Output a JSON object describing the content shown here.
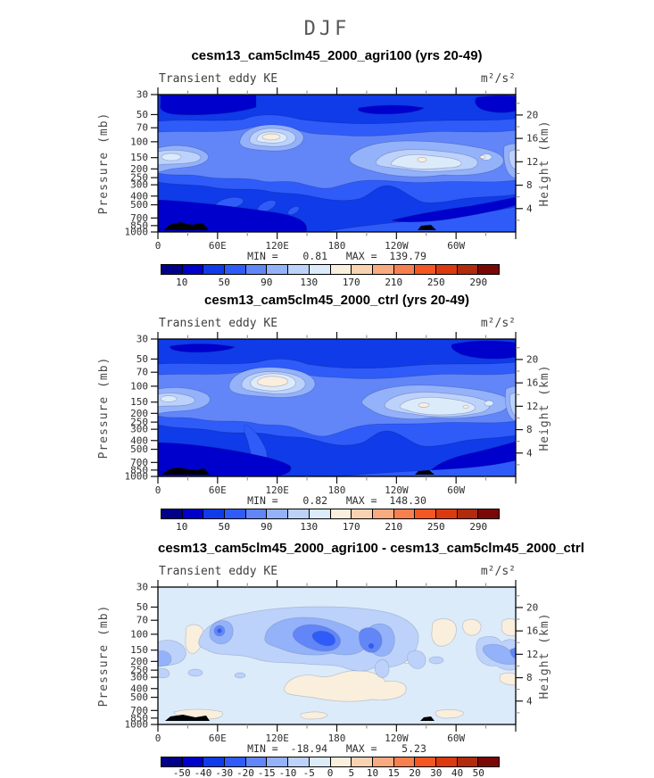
{
  "figure": {
    "title": "DJF"
  },
  "colorbar": {
    "colors": [
      "#000089",
      "#0000cd",
      "#0f3be8",
      "#2f5cf8",
      "#6286f8",
      "#94b2fa",
      "#bdd2fa",
      "#dcebfa",
      "#faeedc",
      "#f9d2b2",
      "#f8aa80",
      "#f8804e",
      "#f45722",
      "#dc3a0e",
      "#b02c0c",
      "#7a0806"
    ],
    "panel12": {
      "labels": [
        "10",
        "50",
        "90",
        "130",
        "170",
        "210",
        "250",
        "290"
      ],
      "boundaries": [
        1,
        3,
        5,
        7,
        9,
        11,
        13,
        15
      ]
    },
    "panel3": {
      "labels": [
        "-50",
        "-40",
        "-30",
        "-20",
        "-15",
        "-10",
        "-5",
        "0",
        "5",
        "10",
        "15",
        "20",
        "30",
        "40",
        "50"
      ],
      "boundaries": [
        1,
        2,
        3,
        4,
        5,
        6,
        7,
        8,
        9,
        10,
        11,
        12,
        13,
        14,
        15
      ]
    }
  },
  "axes": {
    "pressure": {
      "title": "Pressure (mb)",
      "ticks": [
        30,
        50,
        70,
        100,
        150,
        200,
        250,
        300,
        400,
        500,
        700,
        850,
        1000
      ]
    },
    "height": {
      "title": "Height (km)",
      "major": [
        20,
        16,
        12,
        8,
        4
      ],
      "minor": [
        22,
        18,
        14,
        10,
        6,
        2
      ]
    },
    "longitude": {
      "major_degrees": [
        0,
        60,
        120,
        180,
        240,
        300,
        360
      ],
      "major_labels": [
        "0",
        "60E",
        "120E",
        "180",
        "120W",
        "60W",
        ""
      ],
      "minor_degrees": [
        30,
        90,
        150,
        210,
        270,
        330
      ]
    }
  },
  "panels": [
    {
      "title": "cesm13_cam5clm45_2000_agri100 (yrs 20-49)",
      "left_subtitle": "Transient eddy KE",
      "right_subtitle": "m²/s²",
      "minmax_text": "MIN =    0.81   MAX =  139.79"
    },
    {
      "title": "cesm13_cam5clm45_2000_ctrl (yrs 20-49)",
      "left_subtitle": "Transient eddy KE",
      "right_subtitle": "m²/s²",
      "minmax_text": "MIN =    0.82   MAX =  148.30"
    },
    {
      "title": "cesm13_cam5clm45_2000_agri100 - cesm13_cam5clm45_2000_ctrl",
      "left_subtitle": "Transient eddy KE",
      "right_subtitle": "m²/s²",
      "minmax_text": "MIN =  -18.94   MAX =    5.23"
    }
  ],
  "chart_data": [
    {
      "type": "filled-contour",
      "season": "DJF",
      "title": "cesm13_cam5clm45_2000_agri100 (yrs 20-49)",
      "variable": "Transient eddy KE",
      "units": "m2/s2",
      "x_axis": {
        "ticks": [
          "0",
          "60E",
          "120E",
          "180",
          "120W",
          "60W"
        ],
        "range_degrees": [
          0,
          360
        ]
      },
      "y_left": {
        "label": "Pressure (mb)",
        "scale": "log",
        "range": [
          30,
          1000
        ],
        "ticks": [
          30,
          50,
          70,
          100,
          150,
          200,
          250,
          300,
          400,
          500,
          700,
          850,
          1000
        ]
      },
      "y_right": {
        "label": "Height (km)",
        "ticks": [
          20,
          16,
          12,
          8,
          4
        ]
      },
      "contour_levels": [
        10,
        30,
        50,
        70,
        90,
        110,
        130,
        150,
        170,
        190,
        210,
        230,
        250,
        270,
        290
      ],
      "min": 0.81,
      "max": 139.79,
      "features": [
        "local maximum ~139 (level 130-150) centered near 95E at ~100 mb (16 km)",
        "broad 90-130 band along 150 mb from 170E to 60W",
        "secondary 90-110 patch near 0-30E at ~170 mb",
        "values <30 above 50 mb and below 700 mb; <10 patches at top-left, top-right and bottom corners",
        "black topography silhouettes at surface near 0-30E and ~105W"
      ]
    },
    {
      "type": "filled-contour",
      "season": "DJF",
      "title": "cesm13_cam5clm45_2000_ctrl (yrs 20-49)",
      "variable": "Transient eddy KE",
      "units": "m2/s2",
      "x_axis": {
        "ticks": [
          "0",
          "60E",
          "120E",
          "180",
          "120W",
          "60W"
        ],
        "range_degrees": [
          0,
          360
        ]
      },
      "y_left": {
        "label": "Pressure (mb)",
        "scale": "log",
        "range": [
          30,
          1000
        ],
        "ticks": [
          30,
          50,
          70,
          100,
          150,
          200,
          250,
          300,
          400,
          500,
          700,
          850,
          1000
        ]
      },
      "y_right": {
        "label": "Height (km)",
        "ticks": [
          20,
          16,
          12,
          8,
          4
        ]
      },
      "contour_levels": [
        10,
        30,
        50,
        70,
        90,
        110,
        130,
        150,
        170,
        190,
        210,
        230,
        250,
        270,
        290
      ],
      "min": 0.82,
      "max": 148.3,
      "features": [
        "local maximum ~148 (level 130-150) centered near 90E at ~100 mb, larger than agri100 case",
        "broad 90-130 band along 150 mb from 170E to 60W with embedded 130+ spots",
        "values <10 at top-left lens, top-right corner and bottom corners",
        "black topography silhouettes at surface near 0-30E and ~105W"
      ]
    },
    {
      "type": "filled-contour",
      "season": "DJF",
      "title": "cesm13_cam5clm45_2000_agri100 - cesm13_cam5clm45_2000_ctrl",
      "variable": "Transient eddy KE difference",
      "units": "m2/s2",
      "x_axis": {
        "ticks": [
          "0",
          "60E",
          "120E",
          "180",
          "120W",
          "60W"
        ],
        "range_degrees": [
          0,
          360
        ]
      },
      "y_left": {
        "label": "Pressure (mb)",
        "scale": "log",
        "range": [
          30,
          1000
        ],
        "ticks": [
          30,
          50,
          70,
          100,
          150,
          200,
          250,
          300,
          400,
          500,
          700,
          850,
          1000
        ]
      },
      "y_right": {
        "label": "Height (km)",
        "ticks": [
          20,
          16,
          12,
          8,
          4
        ]
      },
      "contour_levels": [
        -50,
        -40,
        -30,
        -20,
        -15,
        -10,
        -5,
        0,
        5,
        10,
        15,
        20,
        30,
        40,
        50
      ],
      "min": -18.94,
      "max": 5.23,
      "features": [
        "background mostly -5 to 0 (pale blue)",
        "negative band -10 to -19 arcing along 100-150 mb from 60E to 150W, strongest near 160E-180",
        "isolated -15 spots near 75E and 155W at ~100 mb",
        "weak positive patches 0 to +5 (cream) near 30E aloft, lower troposphere 120E-120W, and near surface",
        "black topography silhouettes at surface near 0-30E and ~105W"
      ]
    }
  ]
}
